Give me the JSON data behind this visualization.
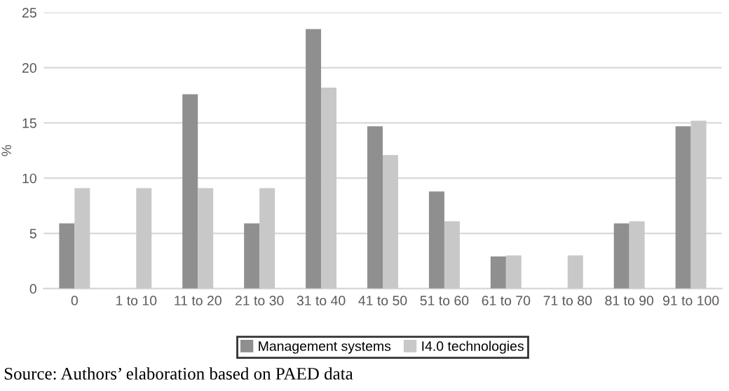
{
  "chart_data": {
    "type": "bar",
    "ylabel": "%",
    "categories": [
      "0",
      "1 to 10",
      "11 to 20",
      "21 to 30",
      "31 to 40",
      "41 to 50",
      "51 to 60",
      "61 to 70",
      "71 to 80",
      "81 to 90",
      "91 to 100"
    ],
    "series": [
      {
        "name": "Management systems",
        "color": "#8f8f8f",
        "values": [
          5.9,
          0,
          17.6,
          5.9,
          23.5,
          14.7,
          8.8,
          2.9,
          0,
          5.9,
          14.7
        ]
      },
      {
        "name": "I4.0 technologies",
        "color": "#c8c8c8",
        "values": [
          9.1,
          9.1,
          9.1,
          9.1,
          18.2,
          12.1,
          6.1,
          3.0,
          3.0,
          6.1,
          15.2
        ]
      }
    ],
    "ylim": [
      0,
      25
    ],
    "yticks": [
      0,
      5,
      10,
      15,
      20,
      25
    ],
    "grid": "y",
    "legend": "bottom",
    "annotations": [
      "Source: Authors’ elaboration based on PAED data"
    ]
  }
}
